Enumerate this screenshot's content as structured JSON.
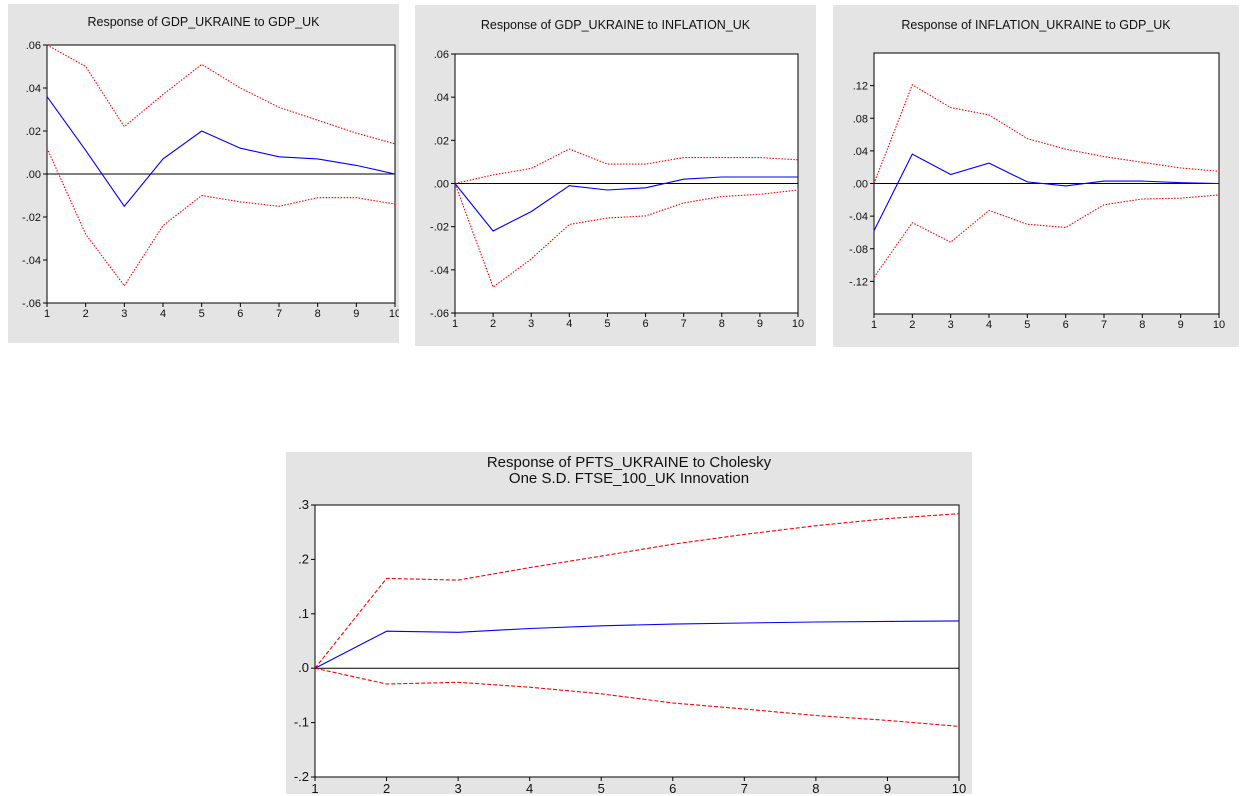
{
  "chart_data": [
    {
      "type": "line",
      "title": "Response of GDP_UKRAINE to GDP_UK",
      "x": [
        1,
        2,
        3,
        4,
        5,
        6,
        7,
        8,
        9,
        10
      ],
      "xlim": [
        1,
        10
      ],
      "ylim": [
        -0.06,
        0.06
      ],
      "yticks": [
        0.06,
        0.04,
        0.02,
        0.0,
        -0.02,
        -0.04,
        -0.06
      ],
      "ytick_labels": [
        ".06",
        ".04",
        ".02",
        ".00",
        "-.02",
        "-.04",
        "-.06"
      ],
      "xtick_labels": [
        "1",
        "2",
        "3",
        "4",
        "5",
        "6",
        "7",
        "8",
        "9",
        "10"
      ],
      "zero_line": true,
      "series": [
        {
          "color": "#0000ff",
          "style": "solid",
          "values": [
            0.036,
            0.011,
            -0.015,
            0.007,
            0.02,
            0.012,
            0.008,
            0.007,
            0.004,
            0.0
          ]
        },
        {
          "color": "#ff0000",
          "style": "dotted",
          "values": [
            0.06,
            0.05,
            0.022,
            0.037,
            0.051,
            0.04,
            0.031,
            0.025,
            0.019,
            0.014
          ]
        },
        {
          "color": "#ff0000",
          "style": "dotted",
          "values": [
            0.012,
            -0.028,
            -0.052,
            -0.024,
            -0.01,
            -0.013,
            -0.015,
            -0.011,
            -0.011,
            -0.014
          ]
        }
      ]
    },
    {
      "type": "line",
      "title": "Response of GDP_UKRAINE to INFLATION_UK",
      "x": [
        1,
        2,
        3,
        4,
        5,
        6,
        7,
        8,
        9,
        10
      ],
      "xlim": [
        1,
        10
      ],
      "ylim": [
        -0.06,
        0.06
      ],
      "yticks": [
        0.06,
        0.04,
        0.02,
        0.0,
        -0.02,
        -0.04,
        -0.06
      ],
      "ytick_labels": [
        ".06",
        ".04",
        ".02",
        ".00",
        "-.02",
        "-.04",
        "-.06"
      ],
      "xtick_labels": [
        "1",
        "2",
        "3",
        "4",
        "5",
        "6",
        "7",
        "8",
        "9",
        "10"
      ],
      "zero_line": true,
      "series": [
        {
          "color": "#0000ff",
          "style": "solid",
          "values": [
            0.0,
            -0.022,
            -0.013,
            -0.001,
            -0.003,
            -0.002,
            0.002,
            0.003,
            0.003,
            0.003
          ]
        },
        {
          "color": "#ff0000",
          "style": "dotted",
          "values": [
            0.0,
            0.004,
            0.007,
            0.016,
            0.009,
            0.009,
            0.012,
            0.012,
            0.012,
            0.011
          ]
        },
        {
          "color": "#ff0000",
          "style": "dotted",
          "values": [
            0.0,
            -0.048,
            -0.035,
            -0.019,
            -0.016,
            -0.015,
            -0.009,
            -0.006,
            -0.005,
            -0.003
          ]
        }
      ]
    },
    {
      "type": "line",
      "title": "Response of INFLATION_UKRAINE to GDP_UK",
      "x": [
        1,
        2,
        3,
        4,
        5,
        6,
        7,
        8,
        9,
        10
      ],
      "xlim": [
        1,
        10
      ],
      "ylim": [
        -0.16,
        0.16
      ],
      "yticks": [
        0.12,
        0.08,
        0.04,
        0.0,
        -0.04,
        -0.08,
        -0.12
      ],
      "ytick_labels": [
        ".12",
        ".08",
        ".04",
        ".00",
        "-.04",
        "-.08",
        "-.12"
      ],
      "xtick_labels": [
        "1",
        "2",
        "3",
        "4",
        "5",
        "6",
        "7",
        "8",
        "9",
        "10"
      ],
      "zero_line": true,
      "series": [
        {
          "color": "#0000ff",
          "style": "solid",
          "values": [
            -0.058,
            0.036,
            0.011,
            0.025,
            0.002,
            -0.003,
            0.003,
            0.003,
            0.001,
            0.0
          ]
        },
        {
          "color": "#ff0000",
          "style": "dotted",
          "values": [
            0.0,
            0.121,
            0.093,
            0.084,
            0.055,
            0.042,
            0.033,
            0.026,
            0.019,
            0.015
          ]
        },
        {
          "color": "#ff0000",
          "style": "dotted",
          "values": [
            -0.115,
            -0.048,
            -0.072,
            -0.033,
            -0.05,
            -0.054,
            -0.026,
            -0.019,
            -0.018,
            -0.014
          ]
        }
      ]
    },
    {
      "type": "line",
      "title": "Response of PFTS_UKRAINE to Cholesky\nOne S.D. FTSE_100_UK Innovation",
      "x": [
        1,
        2,
        3,
        4,
        5,
        6,
        7,
        8,
        9,
        10
      ],
      "xlim": [
        1,
        10
      ],
      "ylim": [
        -0.2,
        0.3
      ],
      "yticks": [
        0.3,
        0.2,
        0.1,
        0.0,
        -0.1,
        -0.2
      ],
      "ytick_labels": [
        ".3",
        ".2",
        ".1",
        ".0",
        "-.1",
        "-.2"
      ],
      "xtick_labels": [
        "1",
        "2",
        "3",
        "4",
        "5",
        "6",
        "7",
        "8",
        "9",
        "10"
      ],
      "zero_line": true,
      "series": [
        {
          "color": "#0000ff",
          "style": "solid",
          "values": [
            0.0,
            0.068,
            0.066,
            0.073,
            0.078,
            0.081,
            0.083,
            0.085,
            0.086,
            0.087
          ]
        },
        {
          "color": "#ff0000",
          "style": "dashed",
          "values": [
            0.0,
            0.165,
            0.162,
            0.185,
            0.206,
            0.228,
            0.246,
            0.262,
            0.275,
            0.284
          ]
        },
        {
          "color": "#ff0000",
          "style": "dashed",
          "values": [
            0.0,
            -0.029,
            -0.026,
            -0.035,
            -0.047,
            -0.064,
            -0.075,
            -0.087,
            -0.096,
            -0.107
          ]
        }
      ]
    }
  ]
}
